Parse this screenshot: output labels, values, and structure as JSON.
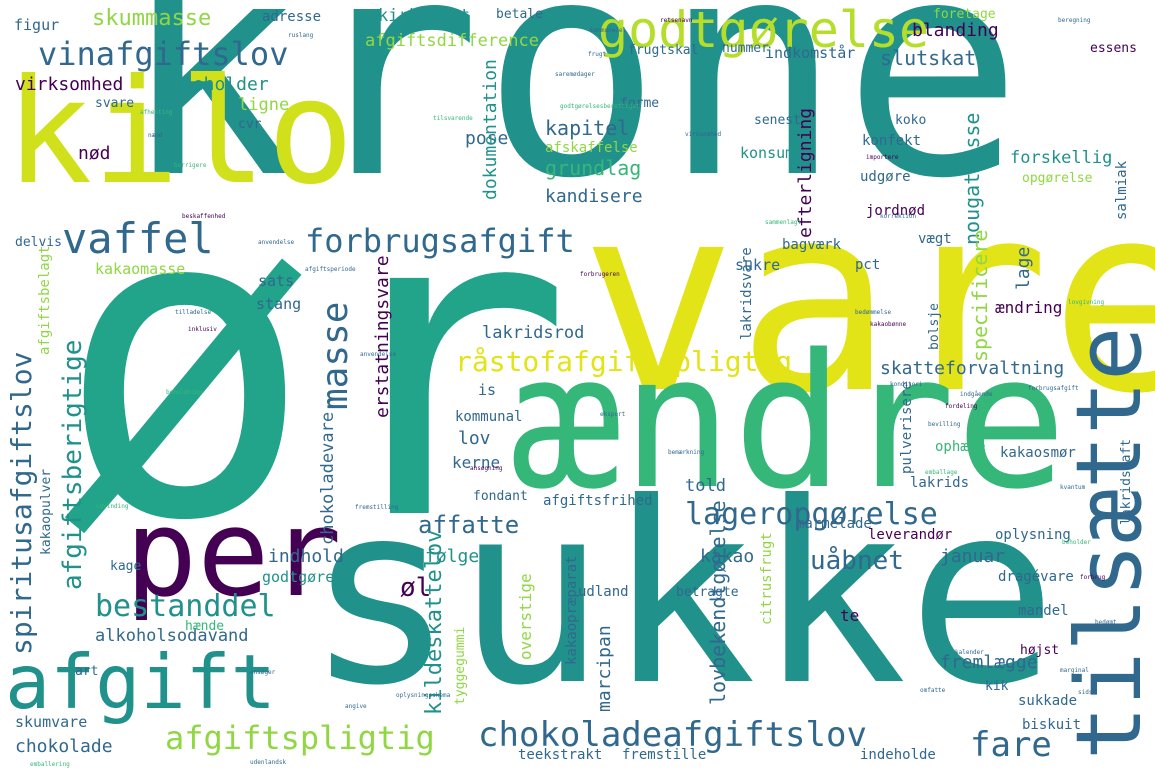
{
  "palette": {
    "purple": "#440154",
    "indigo": "#3b528b",
    "blue": "#31688e",
    "teal": "#21918c",
    "green": "#35b779",
    "lime": "#90d743",
    "yellow": "#e2e418"
  },
  "words": {
    "krone": "krone",
    "vare": "vare",
    "oer": "ør",
    "aendre": "ændre",
    "sukke": "sukke",
    "kilo": "kilo",
    "per": "per",
    "afgift": "afgift",
    "tilsaette": "tilsætte",
    "godtgoerelse": "godtgørelse",
    "vinafgiftslov": "vinafgiftslov",
    "vaffel": "vaffel",
    "forbrugsafgift": "forbrugsafgift",
    "spiritusafgiftslov": "spiritusafgiftslov",
    "afgiftsberigtige": "afgiftsberigtige",
    "bestanddel": "bestanddel",
    "masse": "masse",
    "raastofafgiftspligtig": "råstofafgiftspligtig",
    "lageropgoerelse": "lageropgørelse",
    "afgiftspligtig": "afgiftspligtig",
    "chokoladeafgiftslov": "chokoladeafgiftslov",
    "fare": "fare",
    "affatte": "affatte",
    "uaabnet": "uåbnet",
    "skummasse": "skummasse",
    "afgiftsdifference": "afgiftsdifference",
    "kirkeskat": "kirkeskat",
    "slutskat": "slutskat",
    "blanding": "blanding",
    "indkomstaar": "indkomstår",
    "virksomhed": "virksomhed",
    "beholder": "beholder",
    "ligne": "ligne",
    "noed": "nød",
    "kapitel": "kapitel",
    "pose": "pose",
    "grundlag": "grundlag",
    "kandisere": "kandisere",
    "konsum": "konsum",
    "konfekt": "konfekt",
    "forskellig": "forskellig",
    "nougatmasse": "nougatmasse",
    "efterligning": "efterligning",
    "dokumentation": "dokumentation",
    "afskaffelse": "afskaffelse",
    "udgoere": "udgøre",
    "jordnoed": "jordnød",
    "kakaomasse": "kakaomasse",
    "sats": "sats",
    "stang": "stang",
    "erstatningsvare": "erstatningsvare",
    "lakridsrod": "lakridsrod",
    "skatteforvaltning": "skatteforvaltning",
    "specificere": "specificere",
    "aendring": "ændring",
    "lage": "lage",
    "sukre": "sukre",
    "pct": "pct",
    "vaegt": "vægt",
    "bagvaerk": "bagværk",
    "kildeskattelov": "kildeskattelov",
    "oel": "øl",
    "indhold": "indhold",
    "foelge": "følge",
    "godtgoere": "godtgøre",
    "alkoholsodavand": "alkoholsodavand",
    "chokoladevare": "chokoladevare",
    "lov": "lov",
    "kerne": "kerne",
    "told": "told",
    "kakao": "kakao",
    "januar": "januar",
    "lovbekendtgoerelse": "lovbekendtgørelse",
    "marcipan": "marcipan",
    "overstige": "overstige",
    "fremlaegge": "fremlægge",
    "skumvare": "skumvare",
    "chokolade": "chokolade",
    "teekstrakt": "teekstrakt",
    "fremstille": "fremstille",
    "indeholde": "indeholde",
    "biskuit": "biskuit",
    "sukkade": "sukkade",
    "kik": "kik",
    "hoejst": "højst",
    "mandel": "mandel",
    "te": "te",
    "dragevare": "dragévare",
    "leverandoer": "leverandør",
    "oplysning": "oplysning",
    "marmelade": "marmelade",
    "fondant": "fondant",
    "afgiftsfrihed": "afgiftsfrihed",
    "kommunal": "kommunal",
    "is": "is",
    "lakrids": "lakrids",
    "kakaosmoer": "kakaosmør",
    "ophaeve": "ophæve",
    "pulverisere": "pulverisere",
    "lakridssaft": "lakridssaft",
    "lakridsvare": "lakridsvare",
    "bolsje": "bolsje",
    "citrusfrugt": "citrusfrugt",
    "kakaopraeparat": "kakaopræparat",
    "udland": "udland",
    "betragte": "betragte",
    "kage": "kage",
    "haende": "hænde",
    "tyggegummi": "tyggegummi",
    "art": "art",
    "figur": "figur",
    "adresse": "adresse",
    "betale": "betale",
    "foretage": "foretage",
    "essens": "essens",
    "nummer": "nummer",
    "frugtskal": "frugtskal",
    "forme": "forme",
    "svare": "svare",
    "cvr": "cvr",
    "koko": "koko",
    "senest": "senest",
    "delvis": "delvis",
    "opgoerelse": "opgørelse",
    "salmiak": "salmiak",
    "afgiftsbelagt": "afgiftsbelagt",
    "kakaopulver": "kakaopulver",
    "t1": "ruslang",
    "t2": "kommunedel",
    "t3": "frugt",
    "t4": "saremødager",
    "t5": "tilsvarende",
    "t6": "godtgørelsesberettiget",
    "t7": "retsenavn",
    "t8": "afhenting",
    "t9": "næmd",
    "t10": "borrigere",
    "t11": "beskaffenhed",
    "t12": "anvendelse",
    "t13": "afgiftsperiode",
    "t14": "forbrugeren",
    "t15": "virksomhed",
    "t16": "importere",
    "t17": "sammenlagt",
    "t18": "korrektion",
    "t19": "bedømmelse",
    "t20": "kakaobønne",
    "t21": "konditori",
    "t22": "indgående",
    "t23": "ansøgning",
    "t24": "fremstilling",
    "t25": "anvendelse",
    "t26": "eksport",
    "t27": "bevilling",
    "t28": "lovgivning",
    "t29": "fordeling",
    "t30": "forbrugsafgift",
    "t31": "udvinding",
    "t32": "inklusiv",
    "t33": "tilladelse",
    "t34": "beholdning",
    "t35": "ansøger",
    "t36": "angive",
    "t37": "oplysningsskema",
    "t38": "emballering",
    "t39": "udenlandsk",
    "t40": "bemærkning",
    "t41": "omfatte",
    "t42": "kalender",
    "t43": "marginal",
    "t44": "sidst",
    "t45": "bedømt",
    "t46": "forbrug",
    "t47": "beholder",
    "t48": "emballage",
    "t49": "kvantum",
    "t50": "beregning"
  }
}
